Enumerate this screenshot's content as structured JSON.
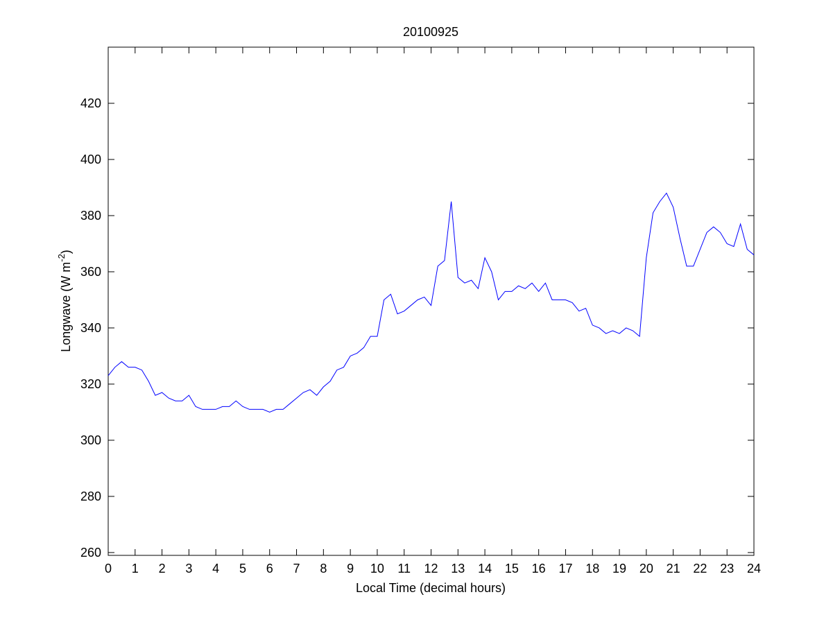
{
  "chart_data": {
    "type": "line",
    "title": "20100925",
    "xlabel": "Local Time (decimal hours)",
    "ylabel": {
      "text": "Longwave (W m",
      "superscript": "-2",
      "suffix": ")"
    },
    "x": [
      0,
      0.25,
      0.5,
      0.75,
      1,
      1.25,
      1.5,
      1.75,
      2,
      2.25,
      2.5,
      2.75,
      3,
      3.25,
      3.5,
      3.75,
      4,
      4.25,
      4.5,
      4.75,
      5,
      5.25,
      5.5,
      5.75,
      6,
      6.25,
      6.5,
      6.75,
      7,
      7.25,
      7.5,
      7.75,
      8,
      8.25,
      8.5,
      8.75,
      9,
      9.25,
      9.5,
      9.75,
      10,
      10.25,
      10.5,
      10.75,
      11,
      11.25,
      11.5,
      11.75,
      12,
      12.25,
      12.5,
      12.75,
      13,
      13.25,
      13.5,
      13.75,
      14,
      14.25,
      14.5,
      14.75,
      15,
      15.25,
      15.5,
      15.75,
      16,
      16.25,
      16.5,
      16.75,
      17,
      17.25,
      17.5,
      17.75,
      18,
      18.25,
      18.5,
      18.75,
      19,
      19.25,
      19.5,
      19.75,
      20,
      20.25,
      20.5,
      20.75,
      21,
      21.25,
      21.5,
      21.75,
      22,
      22.25,
      22.5,
      22.75,
      23,
      23.25,
      23.5,
      23.75,
      24
    ],
    "series": [
      {
        "name": "Longwave",
        "color": "#0000ff",
        "values": [
          323,
          326,
          328,
          326,
          326,
          325,
          321,
          316,
          317,
          315,
          314,
          314,
          316,
          312,
          311,
          311,
          311,
          312,
          312,
          314,
          312,
          311,
          311,
          311,
          310,
          311,
          311,
          313,
          315,
          317,
          318,
          316,
          319,
          321,
          325,
          326,
          330,
          331,
          333,
          337,
          337,
          350,
          352,
          345,
          346,
          348,
          350,
          351,
          348,
          362,
          364,
          385,
          358,
          356,
          357,
          354,
          365,
          360,
          350,
          353,
          353,
          355,
          354,
          356,
          353,
          356,
          350,
          350,
          350,
          349,
          346,
          347,
          341,
          340,
          338,
          339,
          338,
          340,
          339,
          337,
          365,
          381,
          385,
          388,
          383,
          372,
          362,
          362,
          368,
          374,
          376,
          374,
          370,
          369,
          377,
          368,
          366
        ]
      }
    ],
    "xlim": [
      0,
      24
    ],
    "xticks": [
      0,
      1,
      2,
      3,
      4,
      5,
      6,
      7,
      8,
      9,
      10,
      11,
      12,
      13,
      14,
      15,
      16,
      17,
      18,
      19,
      20,
      21,
      22,
      23,
      24
    ],
    "ylim": [
      259,
      440
    ],
    "yticks": [
      260,
      280,
      300,
      320,
      340,
      360,
      380,
      400,
      420
    ],
    "grid": false
  }
}
